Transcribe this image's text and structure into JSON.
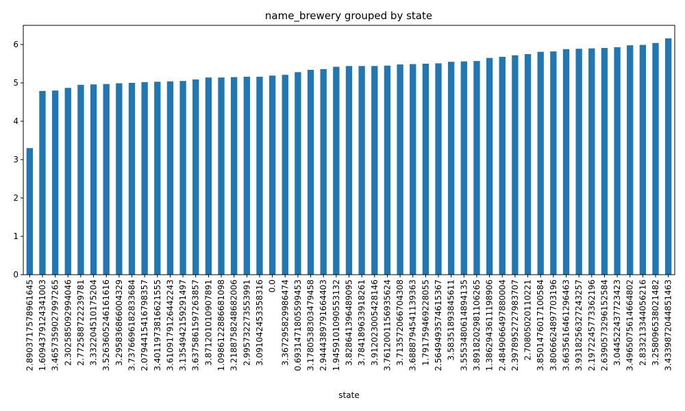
{
  "chart_data": {
    "type": "bar",
    "title": "name_brewery grouped by state",
    "xlabel": "state",
    "ylabel": "",
    "ylim": [
      0,
      6.5
    ],
    "yticks": [
      0,
      1,
      2,
      3,
      4,
      5,
      6
    ],
    "grid": false,
    "legend": "none",
    "bar_color": "#1f77b4",
    "categories": [
      "2.8903717578961645",
      "1.6094379124341003",
      "3.4657359027997265",
      "2.302585092994046",
      "2.772588722239781",
      "3.332204510175204",
      "3.5263605246161616",
      "3.295836866004329",
      "3.7376696182833684",
      "2.0794415416798357",
      "3.4011973816621555",
      "3.6109179126442243",
      "3.1354942159291497",
      "3.6375861597263857",
      "3.871201010907891",
      "1.0986122886681098",
      "3.2188758248682006",
      "2.995732273553991",
      "3.091042453358316",
      "0.0",
      "3.367295829986474",
      "0.6931471805599453",
      "3.1780538303479458",
      "2.9444389791664403",
      "1.9459101090553132",
      "3.828641396489095",
      "3.784189633918261",
      "3.912023005428146",
      "3.7612001156935624",
      "3.713572066704308",
      "3.6888794541139363",
      "1.791759469228055",
      "2.5649493574615367",
      "3.58351893845611",
      "3.5553480614894135",
      "3.8918202981106265",
      "1.3862943611198906",
      "2.4849066497880004",
      "2.3978952727983707",
      "2.70805020110221",
      "3.8501476017100584",
      "3.8066624897703196",
      "3.6635616461296463",
      "3.9318256327243257",
      "2.1972245773362196",
      "2.6390573296152584",
      "3.044522437723423",
      "3.4965075614664802",
      "2.833213344056216",
      "3.258096538021482",
      "3.4339872044851463"
    ],
    "values": [
      3.3,
      4.79,
      4.8,
      4.87,
      4.95,
      4.96,
      4.97,
      4.99,
      5.0,
      5.02,
      5.03,
      5.04,
      5.05,
      5.09,
      5.14,
      5.14,
      5.15,
      5.16,
      5.16,
      5.19,
      5.21,
      5.28,
      5.34,
      5.36,
      5.42,
      5.44,
      5.44,
      5.44,
      5.45,
      5.48,
      5.49,
      5.5,
      5.51,
      5.55,
      5.56,
      5.57,
      5.65,
      5.68,
      5.72,
      5.75,
      5.81,
      5.82,
      5.88,
      5.89,
      5.9,
      5.91,
      5.93,
      5.98,
      5.99,
      6.04,
      6.16
    ]
  }
}
